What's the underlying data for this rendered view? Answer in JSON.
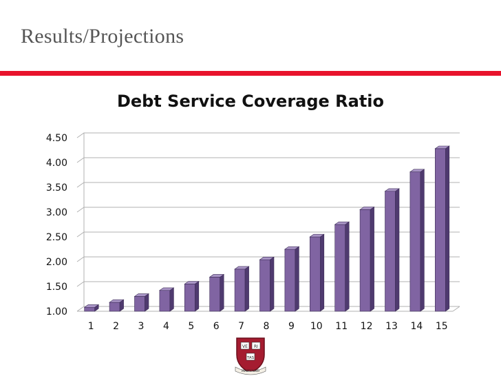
{
  "slide": {
    "title": "Results/Projections"
  },
  "colors": {
    "accent": "#e8132c",
    "bar_front": "#8064a2",
    "bar_top": "#a995c6",
    "bar_side": "#4f3a6f",
    "gridline": "#b0b0b0"
  },
  "chart_data": {
    "type": "bar",
    "title": "Debt Service Coverage Ratio",
    "categories": [
      "1",
      "2",
      "3",
      "4",
      "5",
      "6",
      "7",
      "8",
      "9",
      "10",
      "11",
      "12",
      "13",
      "14",
      "15"
    ],
    "values": [
      1.08,
      1.18,
      1.3,
      1.42,
      1.55,
      1.69,
      1.85,
      2.04,
      2.25,
      2.5,
      2.75,
      3.05,
      3.42,
      3.81,
      4.28
    ],
    "xlabel": "",
    "ylabel": "",
    "ylim": [
      1.0,
      4.5
    ],
    "yticks": [
      "1.00",
      "1.50",
      "2.00",
      "2.50",
      "3.00",
      "3.50",
      "4.00",
      "4.50"
    ],
    "grid": true,
    "legend": "none",
    "style": "3d-column"
  },
  "logo": {
    "name": "harvard-shield",
    "motto": [
      "VE",
      "RI",
      "TAS"
    ],
    "ribbon": "HARVARD"
  }
}
